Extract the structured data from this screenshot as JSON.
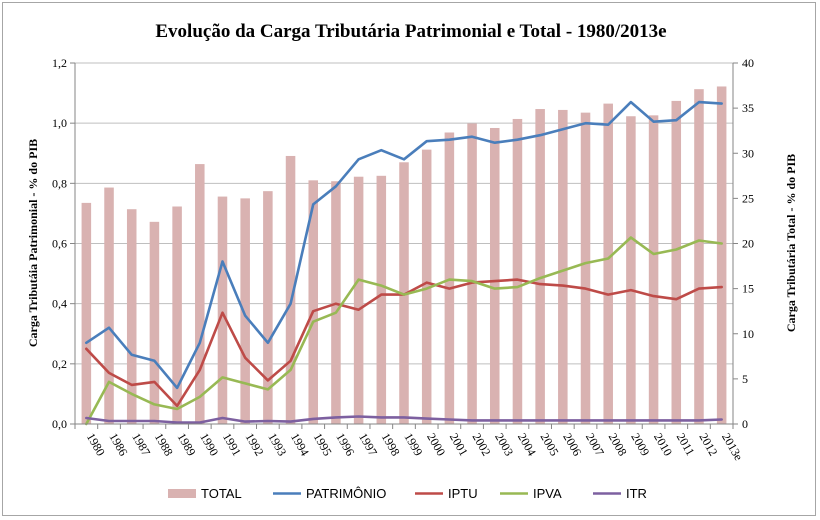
{
  "chart_data": {
    "type": "bar+line",
    "title": "Evolução da Carga Tributária Patrimonial e Total - 1980/2013e",
    "ylabel_left": "Carga Tributáia Patrimonial - % do PIB",
    "ylabel_right": "Carga Tributária Total - % do PIB",
    "ylim_left": [
      0,
      1.2
    ],
    "ylim_right": [
      0,
      40
    ],
    "yticks_left": [
      "0,0",
      "0,2",
      "0,4",
      "0,6",
      "0,8",
      "1,0",
      "1,2"
    ],
    "yticks_right": [
      "0",
      "5",
      "10",
      "15",
      "20",
      "25",
      "30",
      "35",
      "40"
    ],
    "grid": "horizontal",
    "legend_position": "bottom",
    "categories": [
      "1980",
      "1986",
      "1987",
      "1988",
      "1989",
      "1990",
      "1991",
      "1992",
      "1993",
      "1994",
      "1995",
      "1996",
      "1997",
      "1998",
      "1999",
      "2000",
      "2001",
      "2002",
      "2003",
      "2004",
      "2005",
      "2006",
      "2007",
      "2008",
      "2009",
      "2010",
      "2011",
      "2012",
      "2013e"
    ],
    "bars": {
      "name": "TOTAL",
      "axis": "right",
      "color": "#d9b2b1",
      "values": [
        24.5,
        26.2,
        23.8,
        22.4,
        24.1,
        28.8,
        25.2,
        25.0,
        25.8,
        29.7,
        27.0,
        26.9,
        27.4,
        27.5,
        29.0,
        30.4,
        32.3,
        33.3,
        32.8,
        33.8,
        34.9,
        34.8,
        34.5,
        35.5,
        34.1,
        34.2,
        35.8,
        37.1,
        37.4
      ]
    },
    "series": [
      {
        "name": "PATRIMÔNIO",
        "axis": "left",
        "color": "#4a7ebb",
        "values": [
          0.27,
          0.32,
          0.23,
          0.21,
          0.12,
          0.27,
          0.54,
          0.36,
          0.27,
          0.4,
          0.73,
          0.79,
          0.88,
          0.91,
          0.88,
          0.94,
          0.945,
          0.955,
          0.935,
          0.945,
          0.96,
          0.98,
          1.0,
          0.995,
          1.07,
          1.005,
          1.01,
          1.07,
          1.065
        ]
      },
      {
        "name": "IPTU",
        "axis": "left",
        "color": "#be4b48",
        "values": [
          0.25,
          0.17,
          0.13,
          0.14,
          0.06,
          0.18,
          0.37,
          0.22,
          0.145,
          0.21,
          0.375,
          0.4,
          0.38,
          0.43,
          0.43,
          0.47,
          0.45,
          0.47,
          0.475,
          0.48,
          0.465,
          0.46,
          0.45,
          0.43,
          0.445,
          0.425,
          0.415,
          0.45,
          0.455
        ]
      },
      {
        "name": "IPVA",
        "axis": "left",
        "color": "#98b954",
        "values": [
          0.0,
          0.14,
          0.1,
          0.065,
          0.05,
          0.09,
          0.155,
          0.135,
          0.115,
          0.18,
          0.34,
          0.37,
          0.48,
          0.46,
          0.43,
          0.45,
          0.48,
          0.475,
          0.45,
          0.455,
          0.485,
          0.51,
          0.535,
          0.55,
          0.62,
          0.565,
          0.58,
          0.61,
          0.6
        ]
      },
      {
        "name": "ITR",
        "axis": "left",
        "color": "#7d60a0",
        "values": [
          0.02,
          0.01,
          0.01,
          0.01,
          0.005,
          0.005,
          0.02,
          0.008,
          0.01,
          0.008,
          0.017,
          0.022,
          0.025,
          0.022,
          0.022,
          0.018,
          0.015,
          0.012,
          0.012,
          0.012,
          0.012,
          0.012,
          0.012,
          0.012,
          0.012,
          0.012,
          0.012,
          0.012,
          0.015
        ]
      }
    ]
  }
}
